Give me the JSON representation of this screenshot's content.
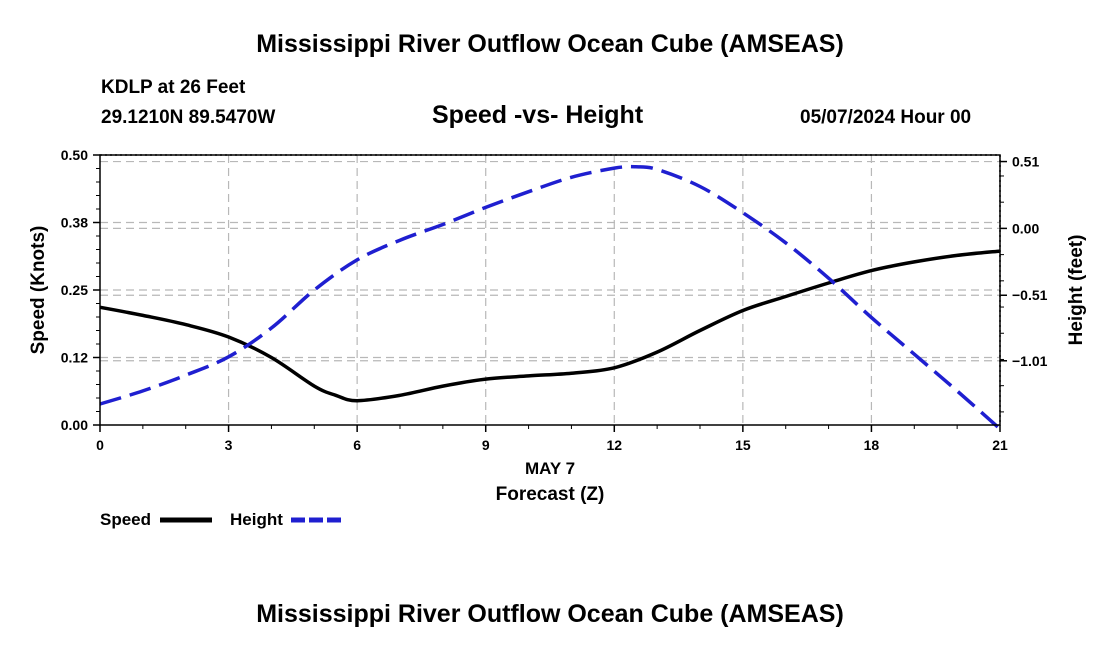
{
  "header": {
    "title": "Mississippi River Outflow Ocean Cube (AMSEAS)",
    "station": "KDLP at 26 Feet",
    "coords": "29.1210N  89.5470W",
    "date": "05/07/2024 Hour 00"
  },
  "footer": {
    "title": "Mississippi River Outflow Ocean Cube (AMSEAS)"
  },
  "chart_data": {
    "type": "line",
    "title": "Speed -vs- Height",
    "xlabel": "Forecast (Z)",
    "date_label": "MAY 7",
    "ylabel": "Speed (Knots)",
    "y2label": "Height (feet)",
    "xlim": [
      0,
      21
    ],
    "ylim": [
      0,
      0.5
    ],
    "y2lim": [
      -1.5,
      0.56
    ],
    "x_ticks": [
      0,
      3,
      6,
      9,
      12,
      15,
      18,
      21
    ],
    "x_tick_labels": [
      "0",
      "3",
      "6",
      "9",
      "12",
      "15",
      "18",
      "21"
    ],
    "y_ticks": [
      0,
      0.125,
      0.25,
      0.375,
      0.5
    ],
    "y_tick_labels": [
      "0.00",
      "0.12",
      "0.25",
      "0.38",
      "0.50"
    ],
    "y2_ticks": [
      -1.01,
      -0.51,
      0.0,
      0.51
    ],
    "y2_tick_labels": [
      "−1.01",
      "−0.51",
      "0.00",
      "0.51"
    ],
    "grid": true,
    "legend": [
      {
        "name": "Speed",
        "color": "#000000",
        "style": "solid"
      },
      {
        "name": "Height",
        "color": "#1f1fd0",
        "style": "dashed"
      }
    ],
    "series": [
      {
        "name": "Speed",
        "axis": "left",
        "color": "#000000",
        "x": [
          0,
          1,
          2,
          3,
          4,
          5,
          5.5,
          6,
          7,
          8,
          9,
          10,
          11,
          12,
          13,
          14,
          15,
          16,
          17,
          18,
          19,
          20,
          21
        ],
        "values": [
          0.218,
          0.203,
          0.186,
          0.163,
          0.125,
          0.072,
          0.055,
          0.045,
          0.055,
          0.072,
          0.085,
          0.091,
          0.096,
          0.106,
          0.135,
          0.175,
          0.212,
          0.238,
          0.263,
          0.286,
          0.302,
          0.314,
          0.322
        ]
      },
      {
        "name": "Height",
        "axis": "right",
        "color": "#1f1fd0",
        "x": [
          0,
          1,
          2,
          3,
          4,
          5,
          6,
          7,
          8,
          9,
          10,
          11,
          12,
          12.5,
          13,
          14,
          15,
          16,
          17,
          18,
          19,
          20,
          21
        ],
        "values": [
          -1.34,
          -1.24,
          -1.12,
          -0.98,
          -0.76,
          -0.47,
          -0.24,
          -0.09,
          0.03,
          0.16,
          0.28,
          0.39,
          0.46,
          0.47,
          0.45,
          0.32,
          0.12,
          -0.11,
          -0.38,
          -0.68,
          -0.96,
          -1.24,
          -1.53
        ]
      }
    ]
  }
}
